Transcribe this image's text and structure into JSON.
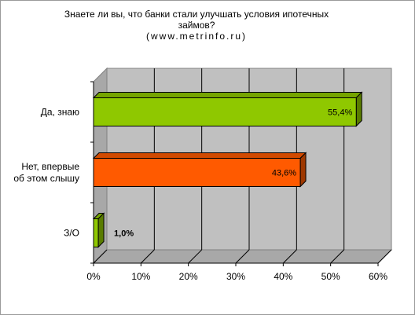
{
  "chart_data": {
    "type": "bar",
    "orientation": "horizontal",
    "title_lines": [
      "Знаете ли вы, что банки стали улучшать условия ипотечных",
      "займов?",
      "(www.metrinfo.ru)"
    ],
    "categories": [
      "Да, знаю",
      "Нет, впервые об этом слышу",
      "З/О"
    ],
    "category_label_lines": [
      [
        "Да, знаю"
      ],
      [
        "Нет, впервые",
        "об этом слышу"
      ],
      [
        "З/О"
      ]
    ],
    "values": [
      55.4,
      43.6,
      1.0
    ],
    "value_labels": [
      "55,4%",
      "43,6%",
      "1,0%"
    ],
    "bar_colors": [
      "#8fc800",
      "#ff5a00",
      "#8fc800"
    ],
    "x_ticks": [
      "0%",
      "10%",
      "20%",
      "30%",
      "40%",
      "50%",
      "60%"
    ],
    "xlim": [
      0,
      60
    ],
    "grid": true,
    "legend": "none",
    "style": "3d"
  }
}
